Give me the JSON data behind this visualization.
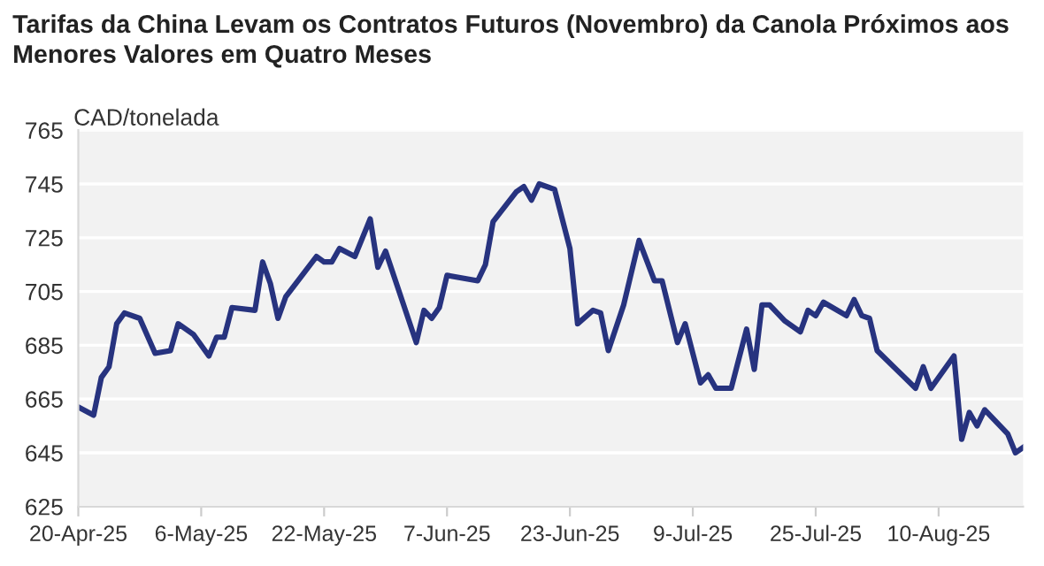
{
  "chart_data": {
    "type": "line",
    "title": "Tarifas da China Levam os Contratos Futuros (Novembro) da Canola Próximos aos\nMenores Valores em Quatro Meses",
    "ylabel": "CAD/tonelada",
    "x": [
      "2025-04-20",
      "2025-04-22",
      "2025-04-23",
      "2025-04-24",
      "2025-04-25",
      "2025-04-26",
      "2025-04-28",
      "2025-04-30",
      "2025-05-02",
      "2025-05-03",
      "2025-05-05",
      "2025-05-07",
      "2025-05-08",
      "2025-05-09",
      "2025-05-10",
      "2025-05-13",
      "2025-05-14",
      "2025-05-15",
      "2025-05-16",
      "2025-05-17",
      "2025-05-21",
      "2025-05-22",
      "2025-05-23",
      "2025-05-24",
      "2025-05-26",
      "2025-05-28",
      "2025-05-29",
      "2025-05-30",
      "2025-06-03",
      "2025-06-04",
      "2025-06-05",
      "2025-06-06",
      "2025-06-07",
      "2025-06-11",
      "2025-06-12",
      "2025-06-13",
      "2025-06-16",
      "2025-06-17",
      "2025-06-18",
      "2025-06-19",
      "2025-06-21",
      "2025-06-23",
      "2025-06-24",
      "2025-06-26",
      "2025-06-27",
      "2025-06-28",
      "2025-06-30",
      "2025-07-02",
      "2025-07-04",
      "2025-07-05",
      "2025-07-07",
      "2025-07-08",
      "2025-07-10",
      "2025-07-11",
      "2025-07-12",
      "2025-07-14",
      "2025-07-16",
      "2025-07-17",
      "2025-07-18",
      "2025-07-19",
      "2025-07-21",
      "2025-07-23",
      "2025-07-24",
      "2025-07-25",
      "2025-07-26",
      "2025-07-29",
      "2025-07-30",
      "2025-07-31",
      "2025-08-01",
      "2025-08-02",
      "2025-08-07",
      "2025-08-08",
      "2025-08-09",
      "2025-08-12",
      "2025-08-13",
      "2025-08-14",
      "2025-08-15",
      "2025-08-16",
      "2025-08-19",
      "2025-08-20",
      "2025-08-21"
    ],
    "series": [
      {
        "color": "#27337f",
        "values": [
          662,
          659,
          673,
          677,
          693,
          697,
          695,
          682,
          683,
          693,
          689,
          681,
          688,
          688,
          699,
          698,
          716,
          708,
          695,
          703,
          718,
          716,
          716,
          721,
          718,
          732,
          714,
          720,
          686,
          698,
          695,
          699,
          711,
          709,
          715,
          731,
          742,
          744,
          739,
          745,
          743,
          721,
          693,
          698,
          697,
          683,
          700,
          724,
          709,
          709,
          686,
          693,
          671,
          674,
          669,
          669,
          691,
          676,
          700,
          700,
          694,
          690,
          698,
          696,
          701,
          696,
          702,
          696,
          695,
          683,
          669,
          677,
          669,
          681,
          650,
          660,
          655,
          661,
          652,
          645,
          647
        ]
      }
    ],
    "xlim": [
      "2025-04-20",
      "2025-08-21"
    ],
    "xticks": [
      {
        "value": "2025-04-20",
        "label": "20-Apr-25"
      },
      {
        "value": "2025-05-06",
        "label": "6-May-25"
      },
      {
        "value": "2025-05-22",
        "label": "22-May-25"
      },
      {
        "value": "2025-06-07",
        "label": "7-Jun-25"
      },
      {
        "value": "2025-06-23",
        "label": "23-Jun-25"
      },
      {
        "value": "2025-07-09",
        "label": "9-Jul-25"
      },
      {
        "value": "2025-07-25",
        "label": "25-Jul-25"
      },
      {
        "value": "2025-08-10",
        "label": "10-Aug-25"
      }
    ],
    "ylim": [
      625,
      765
    ],
    "yticks": [
      625,
      645,
      665,
      685,
      705,
      725,
      745,
      765
    ],
    "grid": "y",
    "line_style": "solid"
  }
}
